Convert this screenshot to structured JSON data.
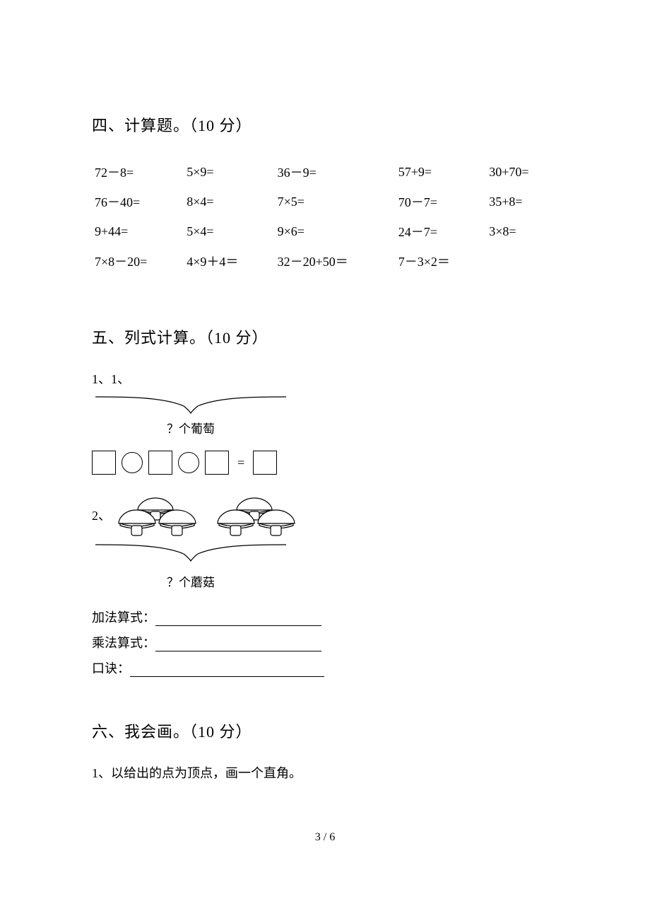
{
  "section4": {
    "title": "四、计算题。（10 分）",
    "rows": [
      [
        "72－8=",
        "5×9=",
        "36－9=",
        "57+9=",
        "30+70="
      ],
      [
        "76－40=",
        "8×4=",
        "7×5=",
        "70－7=",
        "35+8="
      ],
      [
        "9+44=",
        "5×4=",
        "9×6=",
        "24－7=",
        "3×8="
      ],
      [
        "7×8－20=",
        "4×9＋4＝",
        "32－20+50＝",
        "7－3×2＝",
        ""
      ]
    ]
  },
  "section5": {
    "title": "五、列式计算。（10 分）",
    "q1_label": "1、1、",
    "q1_brace_text": "？个葡萄",
    "equals": "=",
    "q2_label": "2、",
    "q2_brace_text": "？个蘑菇",
    "ans1_label": "加法算式：",
    "ans2_label": "乘法算式：",
    "ans3_label": "口诀：",
    "uline1_w": 235,
    "uline2_w": 235,
    "uline3_w": 275
  },
  "section6": {
    "title": "六、我会画。（10 分）",
    "q1": "1、以给出的点为顶点，画一个直角。"
  },
  "footer": "3 / 6",
  "colors": {
    "bg": "#ffffff",
    "text": "#000000"
  }
}
